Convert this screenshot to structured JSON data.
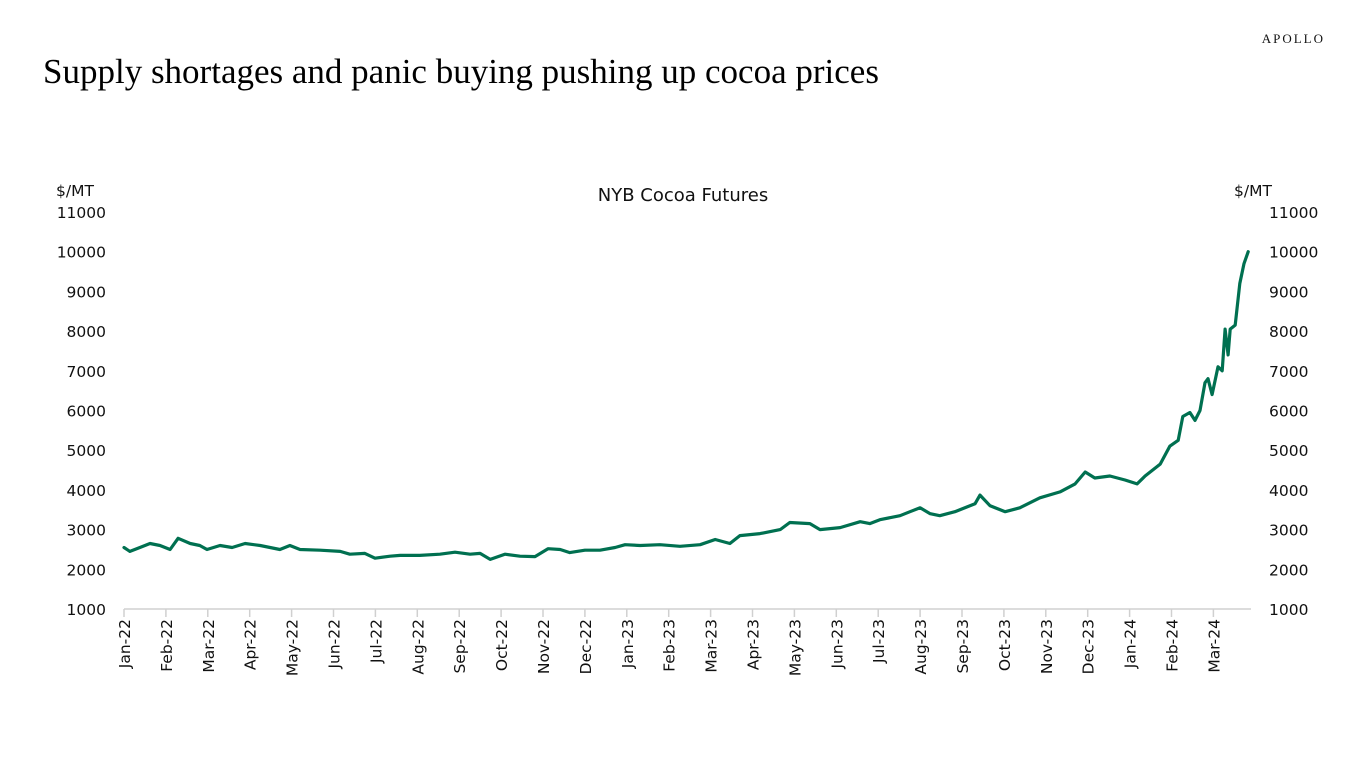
{
  "logo": "APOLLO",
  "page_title": "Supply shortages and panic buying pushing up cocoa prices",
  "chart_data": {
    "type": "line",
    "title": "NYB Cocoa Futures",
    "ylabel_left": "$/MT",
    "ylabel_right": "$/MT",
    "ylim": [
      1000,
      11000
    ],
    "yticks": [
      1000,
      2000,
      3000,
      4000,
      5000,
      6000,
      7000,
      8000,
      9000,
      10000,
      11000
    ],
    "x_unit": "months since Jan-22",
    "xtick_labels": [
      "Jan-22",
      "Feb-22",
      "Mar-22",
      "Apr-22",
      "May-22",
      "Jun-22",
      "Jul-22",
      "Aug-22",
      "Sep-22",
      "Oct-22",
      "Nov-22",
      "Dec-22",
      "Jan-23",
      "Feb-23",
      "Mar-23",
      "Apr-23",
      "May-23",
      "Jun-23",
      "Jul-23",
      "Aug-23",
      "Sep-23",
      "Oct-23",
      "Nov-23",
      "Dec-23",
      "Jan-24",
      "Feb-24",
      "Mar-24"
    ],
    "color": "#007050",
    "grid": false,
    "series": [
      {
        "name": "NYB Cocoa Futures",
        "x": [
          0,
          0.14,
          0.38,
          0.62,
          0.86,
          1.1,
          1.29,
          1.58,
          1.81,
          1.98,
          2.29,
          2.58,
          2.89,
          3.25,
          3.72,
          3.96,
          4.2,
          4.68,
          5.16,
          5.39,
          5.75,
          5.99,
          6.35,
          6.59,
          7.06,
          7.54,
          7.9,
          8.26,
          8.5,
          8.74,
          9.09,
          9.45,
          9.81,
          10.12,
          10.41,
          10.64,
          11.0,
          11.36,
          11.72,
          11.96,
          12.32,
          12.79,
          13.27,
          13.75,
          14.11,
          14.46,
          14.7,
          15.18,
          15.66,
          15.89,
          16.37,
          16.61,
          17.09,
          17.57,
          17.8,
          18.04,
          18.52,
          18.76,
          19.0,
          19.24,
          19.47,
          19.83,
          20.31,
          20.43,
          20.67,
          21.03,
          21.38,
          21.86,
          22.34,
          22.7,
          22.94,
          23.17,
          23.53,
          23.89,
          24.18,
          24.37,
          24.73,
          24.96,
          25.16,
          25.27,
          25.44,
          25.56,
          25.68,
          25.8,
          25.87,
          25.97,
          26.11,
          26.21,
          26.28,
          26.35,
          26.4,
          26.52,
          26.63,
          26.73,
          26.83
        ],
        "y": [
          2550,
          2450,
          2550,
          2650,
          2600,
          2500,
          2780,
          2650,
          2600,
          2500,
          2600,
          2550,
          2650,
          2600,
          2500,
          2600,
          2500,
          2480,
          2450,
          2380,
          2400,
          2280,
          2330,
          2350,
          2350,
          2380,
          2430,
          2380,
          2400,
          2250,
          2380,
          2330,
          2320,
          2520,
          2500,
          2420,
          2480,
          2480,
          2550,
          2620,
          2600,
          2620,
          2580,
          2620,
          2750,
          2650,
          2850,
          2900,
          3000,
          3180,
          3150,
          3000,
          3050,
          3200,
          3150,
          3250,
          3350,
          3450,
          3550,
          3400,
          3350,
          3450,
          3650,
          3870,
          3600,
          3450,
          3550,
          3800,
          3950,
          4150,
          4450,
          4300,
          4350,
          4250,
          4150,
          4350,
          4650,
          5100,
          5250,
          5850,
          5950,
          5750,
          6000,
          6700,
          6800,
          6400,
          7100,
          7000,
          8050,
          7400,
          8050,
          8150,
          9200,
          9700,
          10000
        ]
      }
    ]
  }
}
